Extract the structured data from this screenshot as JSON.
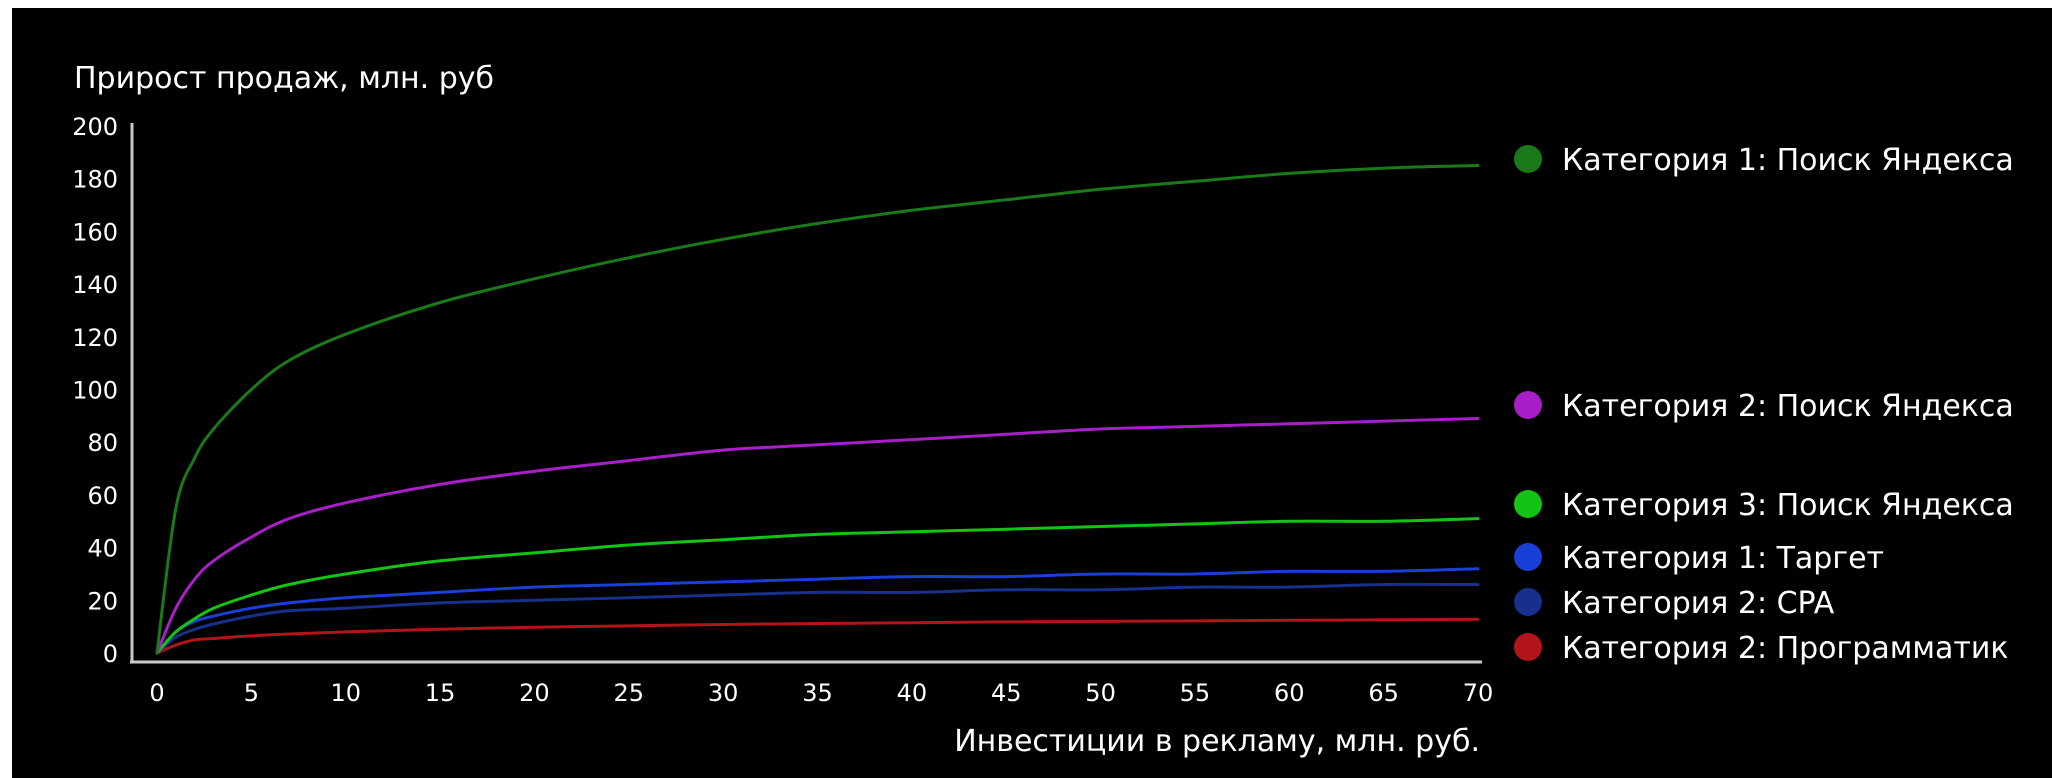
{
  "chart_data": {
    "type": "line",
    "ylabel": "Прирост продаж, млн. руб",
    "xlabel": "Инвестиции в рекламу, млн. руб.",
    "xlim": [
      -1,
      70
    ],
    "ylim": [
      0,
      200
    ],
    "x_ticks": [
      "0",
      "5",
      "10",
      "15",
      "20",
      "25",
      "30",
      "35",
      "40",
      "45",
      "50",
      "55",
      "60",
      "65",
      "70"
    ],
    "y_ticks": [
      "0",
      "20",
      "40",
      "60",
      "80",
      "100",
      "120",
      "140",
      "160",
      "180",
      "200"
    ],
    "grid": false,
    "legend_position": "right",
    "x": [
      0,
      1,
      2,
      3,
      5,
      7,
      10,
      15,
      20,
      25,
      30,
      35,
      40,
      45,
      50,
      55,
      60,
      65,
      70
    ],
    "series": [
      {
        "name": "Категория 1: Поиск Яндекса",
        "color": "#1a7a1a",
        "values": [
          0,
          55,
          74,
          85,
          100,
          111,
          121,
          133,
          142,
          150,
          157,
          163,
          168,
          172,
          176,
          179,
          182,
          184,
          185
        ]
      },
      {
        "name": "Категория 2: Поиск Яндекса",
        "color": "#a81fc8",
        "values": [
          0,
          17,
          28,
          35,
          44,
          51,
          57,
          64,
          69,
          73,
          77,
          79,
          81,
          83,
          85,
          86,
          87,
          88,
          89
        ]
      },
      {
        "name": "Категория 3: Поиск Яндекса",
        "color": "#14c414",
        "values": [
          0,
          8,
          13,
          17,
          22,
          26,
          30,
          35,
          38,
          41,
          43,
          45,
          46,
          47,
          48,
          49,
          50,
          50,
          51
        ]
      },
      {
        "name": "Категория 1: Таргет",
        "color": "#1a3fd6",
        "values": [
          0,
          8,
          12,
          14,
          17,
          19,
          21,
          23,
          25,
          26,
          27,
          28,
          29,
          29,
          30,
          30,
          31,
          31,
          32
        ]
      },
      {
        "name": "Категория 2: CPA",
        "color": "#16308c",
        "values": [
          0,
          6,
          9,
          11,
          14,
          16,
          17,
          19,
          20,
          21,
          22,
          23,
          23,
          24,
          24,
          25,
          25,
          26,
          26
        ]
      },
      {
        "name": "Категория 2: Программатик",
        "color": "#b3141a",
        "values": [
          0,
          3,
          5,
          5.5,
          6.5,
          7.2,
          8,
          9,
          9.8,
          10.3,
          10.8,
          11.2,
          11.5,
          11.8,
          12,
          12.2,
          12.4,
          12.6,
          12.8
        ]
      }
    ]
  }
}
